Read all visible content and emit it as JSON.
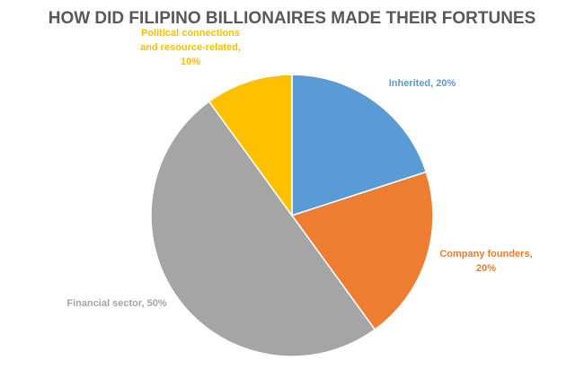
{
  "chart_data": {
    "type": "pie",
    "title": "HOW DID FILIPINO BILLIONAIRES MADE THEIR FORTUNES",
    "labels": [
      "Inherited, 20%",
      "Company founders, 20%",
      "Financial sector, 50%",
      "Political connections and resource-related, 10%"
    ],
    "values": [
      20,
      20,
      50,
      10
    ],
    "colors": [
      "#5b9bd5",
      "#ed7d31",
      "#a5a5a5",
      "#ffc000"
    ]
  }
}
